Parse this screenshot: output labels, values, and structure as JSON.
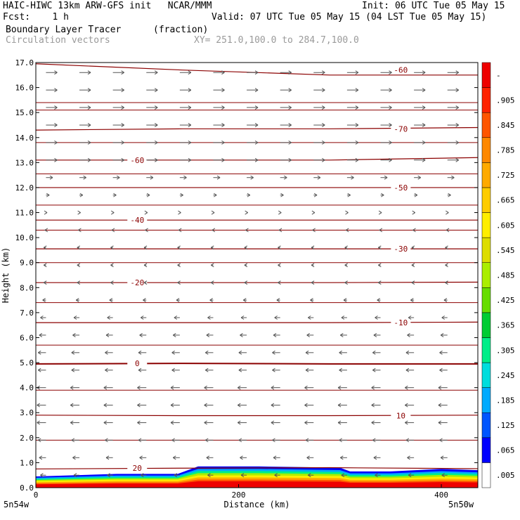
{
  "header": {
    "line1_left": "HAIC-HIWC 13km ARW-GFS init   NCAR/MMM",
    "line1_right": "Init: 06 UTC Tue 05 May 15",
    "line2_left": "Fcst:    1 h",
    "line2_right": "Valid: 07 UTC Tue 05 May 15 (04 LST Tue 05 May 15)",
    "field_name": "Boundary Layer Tracer",
    "field_units": "(fraction)",
    "vectors_label": "Circulation vectors",
    "xy_label": "XY= 251.0,100.0 to 284.7,100.0"
  },
  "chart_data": {
    "type": "cross-section",
    "title": "Boundary Layer Tracer",
    "units": "(fraction)",
    "xlabel": "Distance (km)",
    "ylabel": "Height (km)",
    "xlim": [
      0,
      436
    ],
    "ylim": [
      0,
      17
    ],
    "x_ticks": [
      0,
      200,
      400
    ],
    "y_ticks": [
      0,
      1,
      2,
      3,
      4,
      5,
      6,
      7,
      8,
      9,
      10,
      11,
      12,
      13,
      14,
      15,
      16,
      17
    ],
    "y_tick_labels": [
      "0.0",
      "1.0",
      "2.0",
      "3.0",
      "4.0",
      "5.0",
      "6.0",
      "7.0",
      "8.0",
      "9.0",
      "10.0",
      "11.0",
      "12.0",
      "13.0",
      "14.0",
      "15.0",
      "16.0",
      "17.0"
    ],
    "x_endpoint_left": "5n54w",
    "x_endpoint_right": "5n50w",
    "colorbar": {
      "labels": [
        ".005",
        ".065",
        ".125",
        ".185",
        ".245",
        ".305",
        ".365",
        ".425",
        ".485",
        ".545",
        ".605",
        ".665",
        ".725",
        ".785",
        ".845",
        ".905",
        "-"
      ],
      "colors": [
        "#ffffff",
        "#0000ff",
        "#0055ff",
        "#00aaff",
        "#00dddd",
        "#00ee88",
        "#00cc33",
        "#66dd00",
        "#aaee00",
        "#dddd00",
        "#ffee00",
        "#ffcc00",
        "#ffaa00",
        "#ff8800",
        "#ff5500",
        "#ff2200",
        "#ee0000"
      ]
    },
    "contours": [
      {
        "label": "20",
        "heights": [
          0.75,
          0.78,
          0.8,
          0.76
        ]
      },
      {
        "label": "10",
        "heights": [
          2.9,
          2.88,
          2.88,
          2.9
        ]
      },
      {
        "label": "0",
        "heights": [
          4.95,
          4.97,
          4.95,
          4.95
        ]
      },
      {
        "label": "-10",
        "heights": [
          6.6,
          6.6,
          6.6,
          6.62
        ]
      },
      {
        "label": "-20",
        "heights": [
          8.2,
          8.2,
          8.2,
          8.22
        ]
      },
      {
        "label": "-30",
        "heights": [
          9.55,
          9.55,
          9.55,
          9.55
        ]
      },
      {
        "label": "-40",
        "heights": [
          10.7,
          10.7,
          10.7,
          10.7
        ]
      },
      {
        "label": "-50",
        "heights": [
          12.0,
          12.0,
          12.0,
          12.0
        ]
      },
      {
        "label": "-60",
        "heights": [
          13.1,
          13.1,
          13.1,
          13.2
        ]
      },
      {
        "label": "-70",
        "heights": [
          14.3,
          14.35,
          14.35,
          14.4
        ]
      },
      {
        "label": "-60",
        "heights": [
          16.95,
          16.7,
          16.5,
          16.5
        ]
      }
    ],
    "extra_isolines_km": [
      1.9,
      3.9,
      5.7,
      7.4,
      9.0,
      10.3,
      11.3,
      12.55,
      13.8,
      15.1,
      15.4
    ],
    "tracer_layer": {
      "distance_km": [
        0,
        40,
        80,
        100,
        140,
        160,
        220,
        300,
        310,
        350,
        400,
        436
      ],
      "top_km": [
        0.45,
        0.5,
        0.55,
        0.55,
        0.55,
        0.85,
        0.85,
        0.8,
        0.65,
        0.65,
        0.75,
        0.7
      ]
    },
    "vector_rows": [
      {
        "height_km": 16.6,
        "u": 1
      },
      {
        "height_km": 15.9,
        "u": 1
      },
      {
        "height_km": 15.2,
        "u": 1
      },
      {
        "height_km": 14.5,
        "u": 1
      },
      {
        "height_km": 13.8,
        "u": 1
      },
      {
        "height_km": 13.1,
        "u": 1
      },
      {
        "height_km": 12.4,
        "u": 0.6
      },
      {
        "height_km": 11.7,
        "u": 0.3
      },
      {
        "height_km": 11.0,
        "u": 0.1
      },
      {
        "height_km": 10.3,
        "u": -0.1
      },
      {
        "height_km": 9.6,
        "u": -0.2
      },
      {
        "height_km": 8.9,
        "u": -0.2
      },
      {
        "height_km": 8.2,
        "u": -0.2
      },
      {
        "height_km": 7.5,
        "u": -0.3
      },
      {
        "height_km": 6.8,
        "u": -0.5
      },
      {
        "height_km": 6.1,
        "u": -0.6
      },
      {
        "height_km": 5.4,
        "u": -0.7
      },
      {
        "height_km": 4.7,
        "u": -0.7
      },
      {
        "height_km": 4.0,
        "u": -0.8
      },
      {
        "height_km": 3.3,
        "u": -0.8
      },
      {
        "height_km": 2.6,
        "u": -0.8
      },
      {
        "height_km": 1.9,
        "u": -0.7
      },
      {
        "height_km": 1.2,
        "u": -0.6
      },
      {
        "height_km": 0.5,
        "u": -0.5
      }
    ],
    "colors": {
      "contour": "#8b0000",
      "vector": "#555555",
      "axis": "#000000"
    }
  }
}
